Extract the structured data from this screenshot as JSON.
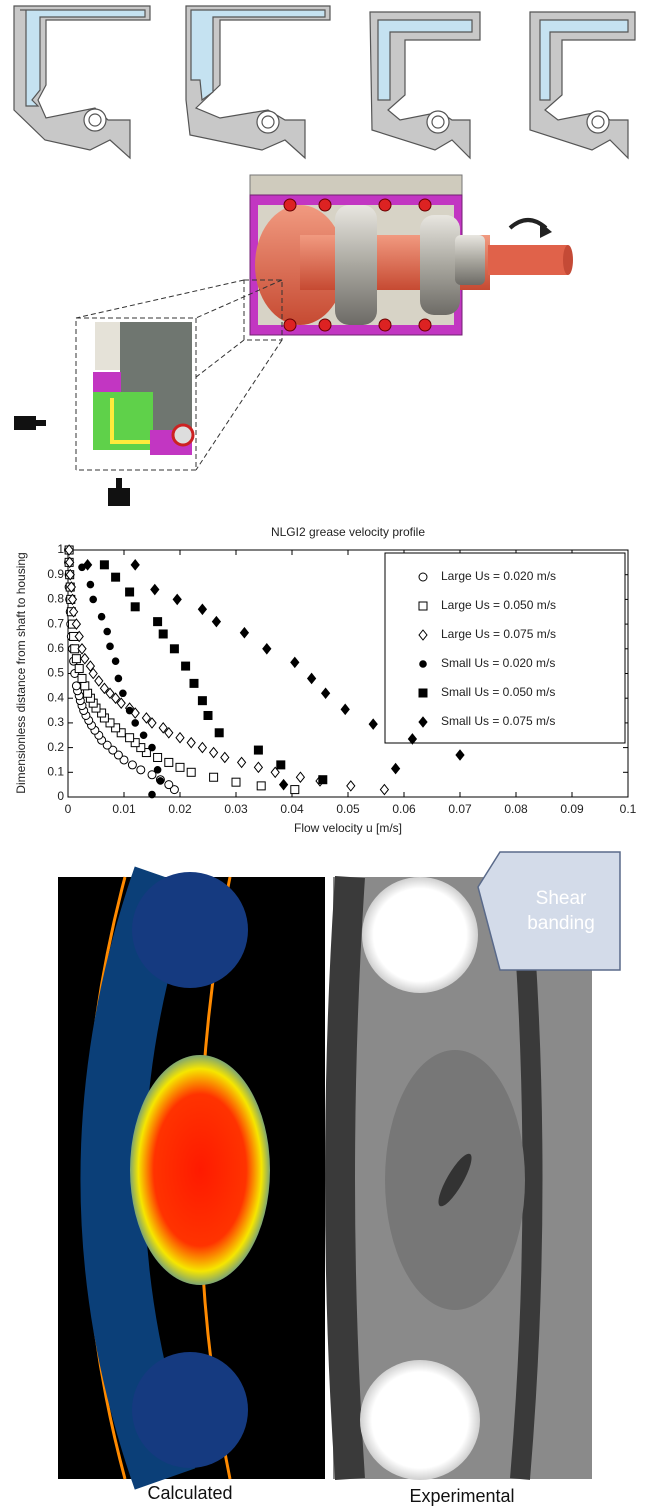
{
  "chart_data": {
    "type": "scatter",
    "title": "NLGI2 grease velocity profile",
    "x_label": "Flow velocity u [m/s]",
    "y_label": "Dimensionless distance from shaft to housing",
    "annotation": "Shear banding",
    "xlim": [
      0,
      0.1
    ],
    "ylim": [
      0,
      1
    ],
    "xticks": [
      0,
      0.01,
      0.02,
      0.03,
      0.04,
      0.05,
      0.06,
      0.07,
      0.08,
      0.09,
      0.1
    ],
    "yticks": [
      0,
      0.1,
      0.2,
      0.3,
      0.4,
      0.5,
      0.6,
      0.7,
      0.8,
      0.9,
      1
    ],
    "grid": false,
    "legend": "upper right",
    "series": [
      {
        "name": "Large Us = 0.020 m/s",
        "color": "#000",
        "marker": "circle",
        "filled": false,
        "x": [
          0.019,
          0.018,
          0.0165,
          0.015,
          0.013,
          0.0115,
          0.01,
          0.009,
          0.008,
          0.007,
          0.006,
          0.0055,
          0.0048,
          0.0042,
          0.0037,
          0.0032,
          0.0028,
          0.0025,
          0.0022,
          0.002,
          0.0017,
          0.0015,
          0.0012,
          0.001,
          0.0008,
          0.0006,
          0.0005,
          0.0004,
          0.0003,
          0.0002,
          0.0002,
          0.0001,
          0.0001
        ],
        "values": [
          0.03,
          0.05,
          0.07,
          0.09,
          0.11,
          0.13,
          0.15,
          0.17,
          0.19,
          0.21,
          0.23,
          0.25,
          0.27,
          0.29,
          0.31,
          0.33,
          0.35,
          0.37,
          0.39,
          0.41,
          0.43,
          0.45,
          0.5,
          0.55,
          0.6,
          0.65,
          0.7,
          0.75,
          0.8,
          0.85,
          0.9,
          0.95,
          1
        ]
      },
      {
        "name": "Large Us = 0.050 m/s",
        "color": "#000",
        "marker": "square",
        "filled": false,
        "x": [
          0.0405,
          0.0345,
          0.03,
          0.026,
          0.022,
          0.02,
          0.018,
          0.016,
          0.014,
          0.013,
          0.012,
          0.011,
          0.0095,
          0.0085,
          0.0075,
          0.0065,
          0.006,
          0.005,
          0.0045,
          0.004,
          0.0035,
          0.003,
          0.0025,
          0.002,
          0.0015,
          0.0012,
          0.001,
          0.0008,
          0.0006,
          0.0005,
          0.0004,
          0.0003,
          0.0002,
          0.0002
        ],
        "values": [
          0.03,
          0.045,
          0.06,
          0.08,
          0.1,
          0.12,
          0.14,
          0.16,
          0.18,
          0.2,
          0.22,
          0.24,
          0.26,
          0.28,
          0.3,
          0.32,
          0.34,
          0.36,
          0.38,
          0.4,
          0.42,
          0.45,
          0.48,
          0.52,
          0.56,
          0.6,
          0.65,
          0.7,
          0.75,
          0.8,
          0.85,
          0.9,
          0.95,
          1
        ]
      },
      {
        "name": "Large Us = 0.075 m/s",
        "color": "#000",
        "marker": "diamond",
        "filled": false,
        "x": [
          0.0565,
          0.0505,
          0.045,
          0.0415,
          0.037,
          0.034,
          0.031,
          0.028,
          0.026,
          0.024,
          0.022,
          0.02,
          0.018,
          0.017,
          0.015,
          0.014,
          0.012,
          0.011,
          0.0095,
          0.0085,
          0.0075,
          0.0065,
          0.0055,
          0.0045,
          0.004,
          0.003,
          0.0025,
          0.002,
          0.0015,
          0.001,
          0.0008,
          0.0006,
          0.0004,
          0.0003,
          0.0002
        ],
        "values": [
          0.03,
          0.045,
          0.065,
          0.08,
          0.1,
          0.12,
          0.14,
          0.16,
          0.18,
          0.2,
          0.22,
          0.24,
          0.26,
          0.28,
          0.3,
          0.32,
          0.34,
          0.36,
          0.38,
          0.4,
          0.42,
          0.44,
          0.47,
          0.5,
          0.53,
          0.56,
          0.6,
          0.65,
          0.7,
          0.75,
          0.8,
          0.85,
          0.9,
          0.95,
          1
        ]
      },
      {
        "name": "Small Us = 0.020 m/s",
        "color": "#000",
        "marker": "circle",
        "filled": true,
        "x": [
          0.015,
          0.0165,
          0.016,
          0.015,
          0.0135,
          0.012,
          0.011,
          0.0098,
          0.009,
          0.0085,
          0.0075,
          0.007,
          0.006,
          0.0045,
          0.004,
          0.0025
        ],
        "values": [
          0.01,
          0.065,
          0.11,
          0.2,
          0.25,
          0.3,
          0.35,
          0.42,
          0.48,
          0.55,
          0.61,
          0.67,
          0.73,
          0.8,
          0.86,
          0.93
        ]
      },
      {
        "name": "Small Us = 0.050 m/s",
        "color": "#000",
        "marker": "square",
        "filled": true,
        "x": [
          0.0455,
          0.038,
          0.034,
          0.027,
          0.025,
          0.024,
          0.0225,
          0.021,
          0.019,
          0.017,
          0.016,
          0.012,
          0.011,
          0.0085,
          0.0065
        ],
        "values": [
          0.07,
          0.13,
          0.19,
          0.26,
          0.33,
          0.39,
          0.46,
          0.53,
          0.6,
          0.66,
          0.71,
          0.77,
          0.83,
          0.89,
          0.94
        ]
      },
      {
        "name": "Small Us = 0.075 m/s",
        "color": "#000",
        "marker": "diamond",
        "filled": true,
        "x": [
          0.0385,
          0.0585,
          0.07,
          0.0615,
          0.0545,
          0.0495,
          0.046,
          0.0435,
          0.0405,
          0.0355,
          0.0315,
          0.0265,
          0.024,
          0.0195,
          0.0155,
          0.012,
          0.0035
        ],
        "values": [
          0.05,
          0.115,
          0.17,
          0.235,
          0.295,
          0.355,
          0.42,
          0.48,
          0.545,
          0.6,
          0.665,
          0.71,
          0.76,
          0.8,
          0.84,
          0.94,
          0.94
        ]
      }
    ]
  },
  "image_captions": [
    "Calculated",
    "Experimental"
  ]
}
